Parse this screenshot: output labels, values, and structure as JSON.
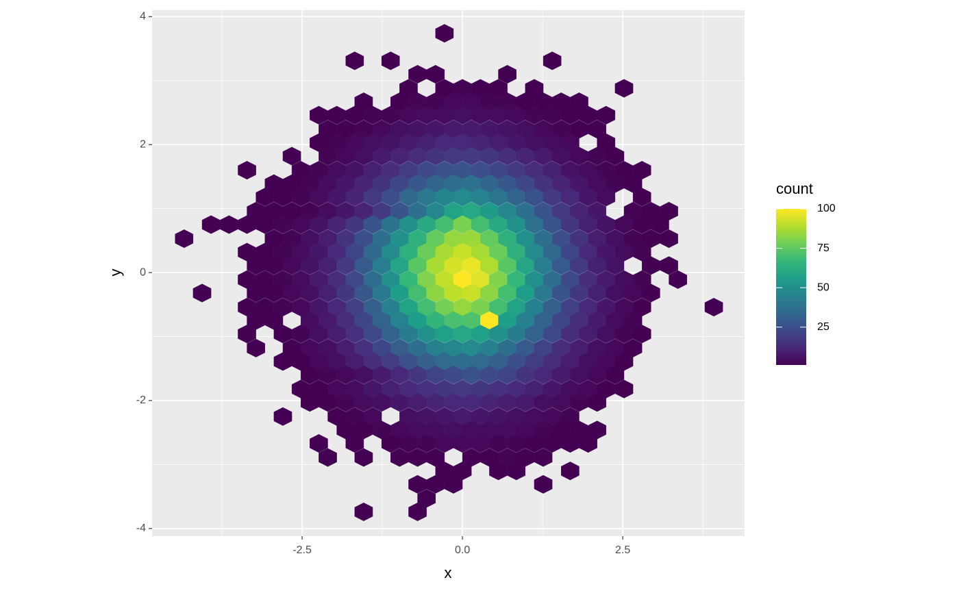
{
  "chart_data": {
    "type": "hexbin",
    "x_label": "x",
    "y_label": "y",
    "xlim": [
      -4.84,
      4.4
    ],
    "ylim": [
      -4.12,
      4.1
    ],
    "xticks": [
      -2.5,
      {
        "value": 0,
        "label": "0.0"
      },
      2.5
    ],
    "yticks": [
      -4,
      -2,
      0,
      2,
      4
    ],
    "grid": true,
    "binwidth": [
      0.28,
      0.427
    ],
    "legend_title": "count",
    "clim": [
      1,
      100
    ],
    "cticks": [
      25,
      50,
      75,
      100
    ],
    "colors": [
      "#440154",
      "#482878",
      "#3e4989",
      "#31688e",
      "#26828e",
      "#1f9e89",
      "#35b779",
      "#6ece58",
      "#b5de2b",
      "#fde725"
    ],
    "rows": [
      {
        "y": 3.74,
        "x": -0.28,
        "values": [
          1
        ]
      },
      {
        "y": 3.31,
        "x": -1.68,
        "values": [
          1,
          null,
          1,
          null,
          null,
          null,
          null,
          null,
          null,
          null,
          null,
          1
        ]
      },
      {
        "y": 3.1,
        "x": -0.7,
        "values": [
          1,
          1,
          null,
          null,
          null,
          1
        ]
      },
      {
        "y": 2.88,
        "x": -0.84,
        "values": [
          1,
          null,
          1,
          2,
          1,
          1,
          null,
          1,
          null,
          null,
          null,
          null,
          1
        ]
      },
      {
        "y": 2.67,
        "x": -1.54,
        "values": [
          1,
          null,
          1,
          2,
          2,
          3,
          3,
          2,
          2,
          1,
          1,
          1,
          1
        ]
      },
      {
        "y": 2.46,
        "x": -2.24,
        "values": [
          1,
          1,
          1,
          2,
          2,
          3,
          4,
          4,
          5,
          4,
          4,
          3,
          2,
          2,
          1,
          1,
          1
        ]
      },
      {
        "y": 2.24,
        "x": -2.1,
        "values": [
          1,
          1,
          2,
          3,
          5,
          6,
          7,
          8,
          8,
          7,
          6,
          5,
          3,
          2,
          1,
          1
        ]
      },
      {
        "y": 2.03,
        "x": -2.24,
        "values": [
          1,
          2,
          3,
          5,
          6,
          8,
          10,
          12,
          12,
          11,
          9,
          7,
          5,
          4,
          3,
          null,
          1
        ]
      },
      {
        "y": 1.82,
        "x": -2.66,
        "values": [
          1,
          null,
          2,
          3,
          5,
          8,
          11,
          14,
          16,
          18,
          18,
          17,
          14,
          11,
          8,
          5,
          3,
          2,
          1
        ]
      },
      {
        "y": 1.6,
        "x": -3.36,
        "values": [
          1,
          null,
          null,
          1,
          2,
          4,
          6,
          10,
          14,
          19,
          23,
          26,
          27,
          25,
          22,
          18,
          14,
          10,
          6,
          4,
          2,
          1,
          1
        ]
      },
      {
        "y": 1.39,
        "x": -2.94,
        "values": [
          1,
          1,
          2,
          4,
          7,
          11,
          16,
          22,
          28,
          33,
          36,
          38,
          33,
          28,
          22,
          16,
          11,
          7,
          4,
          2,
          1
        ]
      },
      {
        "y": 1.18,
        "x": -3.08,
        "values": [
          1,
          1,
          2,
          4,
          7,
          11,
          18,
          25,
          34,
          41,
          46,
          48,
          45,
          40,
          33,
          26,
          18,
          12,
          7,
          4,
          null,
          1
        ]
      },
      {
        "y": 0.96,
        "x": -3.22,
        "values": [
          1,
          1,
          1,
          2,
          4,
          7,
          11,
          18,
          27,
          37,
          47,
          58,
          60,
          55,
          47,
          37,
          27,
          18,
          11,
          7,
          null,
          2,
          1,
          1
        ]
      },
      {
        "y": 0.75,
        "x": -3.92,
        "values": [
          1,
          1,
          1,
          1,
          2,
          3,
          6,
          11,
          17,
          27,
          39,
          51,
          61,
          70,
          80,
          70,
          61,
          51,
          38,
          27,
          17,
          10,
          6,
          3,
          1,
          1
        ]
      },
      {
        "y": 0.53,
        "x": -4.34,
        "values": [
          1,
          null,
          null,
          null,
          null,
          1,
          2,
          5,
          9,
          16,
          25,
          37,
          51,
          64,
          76,
          84,
          85,
          76,
          64,
          51,
          37,
          25,
          16,
          9,
          5,
          2,
          1,
          1
        ]
      },
      {
        "y": 0.32,
        "x": -3.36,
        "values": [
          1,
          1,
          2,
          4,
          7,
          13,
          22,
          34,
          48,
          64,
          77,
          87,
          92,
          87,
          77,
          64,
          48,
          34,
          22,
          13,
          7,
          4,
          2
        ]
      },
      {
        "y": 0.11,
        "x": -3.22,
        "values": [
          1,
          1,
          3,
          6,
          10,
          18,
          29,
          43,
          59,
          74,
          87,
          94,
          97,
          88,
          74,
          59,
          43,
          29,
          18,
          10,
          6,
          null,
          1,
          1
        ]
      },
      {
        "y": -0.11,
        "x": -3.36,
        "values": [
          1,
          1,
          2,
          4,
          8,
          14,
          23,
          36,
          51,
          67,
          81,
          91,
          100,
          95,
          81,
          67,
          51,
          36,
          23,
          14,
          8,
          4,
          2,
          null,
          1
        ]
      },
      {
        "y": -0.32,
        "x": -4.06,
        "values": [
          1,
          null,
          null,
          1,
          1,
          3,
          5,
          10,
          17,
          28,
          41,
          56,
          70,
          83,
          90,
          92,
          83,
          70,
          56,
          41,
          27,
          17,
          10,
          5,
          3,
          1
        ]
      },
      {
        "y": -0.54,
        "x": -3.36,
        "values": [
          1,
          1,
          2,
          3,
          7,
          12,
          20,
          31,
          44,
          58,
          70,
          79,
          84,
          80,
          70,
          58,
          44,
          31,
          20,
          12,
          7,
          3,
          1,
          null,
          null,
          null,
          1
        ]
      },
      {
        "y": -0.75,
        "x": -3.22,
        "values": [
          1,
          1,
          null,
          4,
          8,
          14,
          22,
          32,
          45,
          56,
          66,
          71,
          72,
          100,
          56,
          44,
          32,
          22,
          14,
          8,
          4,
          2
        ]
      },
      {
        "y": -0.96,
        "x": -3.36,
        "values": [
          1,
          null,
          1,
          2,
          5,
          9,
          15,
          23,
          32,
          42,
          51,
          57,
          60,
          57,
          51,
          42,
          32,
          23,
          14,
          9,
          5,
          2,
          1
        ]
      },
      {
        "y": -1.18,
        "x": -3.22,
        "values": [
          1,
          null,
          1,
          3,
          5,
          9,
          15,
          22,
          30,
          37,
          44,
          47,
          48,
          44,
          37,
          29,
          21,
          14,
          9,
          5,
          3,
          1
        ]
      },
      {
        "y": -1.39,
        "x": -2.8,
        "values": [
          1,
          1,
          3,
          5,
          9,
          14,
          19,
          26,
          31,
          35,
          36,
          35,
          31,
          25,
          19,
          14,
          9,
          5,
          3,
          1
        ]
      },
      {
        "y": -1.6,
        "x": -2.38,
        "values": [
          1,
          2,
          3,
          5,
          8,
          12,
          17,
          21,
          24,
          26,
          24,
          21,
          16,
          12,
          8,
          5,
          3,
          1
        ]
      },
      {
        "y": -1.82,
        "x": -2.52,
        "values": [
          1,
          1,
          3,
          4,
          7,
          10,
          13,
          15,
          17,
          18,
          17,
          15,
          13,
          10,
          7,
          4,
          3,
          1,
          1
        ]
      },
      {
        "y": -2.03,
        "x": -2.38,
        "values": [
          1,
          1,
          2,
          4,
          5,
          7,
          9,
          11,
          12,
          12,
          11,
          9,
          8,
          5,
          4,
          2,
          1
        ]
      },
      {
        "y": -2.25,
        "x": -2.8,
        "values": [
          1,
          null,
          null,
          1,
          2,
          3,
          null,
          5,
          6,
          7,
          8,
          7,
          6,
          5,
          4,
          3,
          2
        ]
      },
      {
        "y": -2.46,
        "x": -1.82,
        "values": [
          1,
          1,
          2,
          3,
          4,
          4,
          5,
          4,
          4,
          4,
          3,
          2,
          1,
          1,
          1
        ]
      },
      {
        "y": -2.67,
        "x": -2.24,
        "values": [
          1,
          null,
          1,
          null,
          1,
          2,
          2,
          3,
          3,
          3,
          2,
          2,
          1,
          1,
          1,
          1
        ]
      },
      {
        "y": -2.89,
        "x": -2.1,
        "values": [
          1,
          null,
          1,
          null,
          1,
          1,
          1,
          null,
          1,
          1,
          2,
          1,
          1
        ]
      },
      {
        "y": -3.1,
        "x": -0.28,
        "values": [
          1,
          1,
          null,
          1,
          1,
          null,
          null,
          1
        ]
      },
      {
        "y": -3.31,
        "x": -0.7,
        "values": [
          1,
          1,
          1,
          null,
          null,
          null,
          null,
          1
        ]
      },
      {
        "y": -3.53,
        "x": -0.56,
        "values": [
          1
        ]
      },
      {
        "y": -3.74,
        "x": -1.54,
        "values": [
          1,
          null,
          null,
          1
        ]
      }
    ]
  }
}
